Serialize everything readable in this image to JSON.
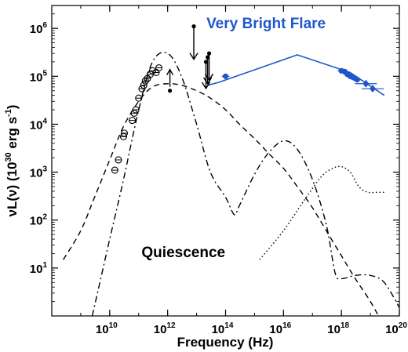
{
  "chart_data": {
    "type": "scatter",
    "title": "",
    "xlabel": "Frequency (Hz)",
    "ylabel_parts": {
      "main": "νL(ν) (10",
      "exp1": "30",
      "unit": " erg s",
      "exp2": "-1",
      "close": ")"
    },
    "x_scale": "log",
    "y_scale": "log",
    "xlim": [
      100000000.0,
      1e+20
    ],
    "ylim": [
      1,
      3000000.0
    ],
    "x_ticks": [
      {
        "value": 10000000000.0,
        "base": "10",
        "exp": "10"
      },
      {
        "value": 1000000000000.0,
        "base": "10",
        "exp": "12"
      },
      {
        "value": 100000000000000.0,
        "base": "10",
        "exp": "14"
      },
      {
        "value": 1e+16,
        "base": "10",
        "exp": "16"
      },
      {
        "value": 1e+18,
        "base": "10",
        "exp": "18"
      },
      {
        "value": 1e+20,
        "base": "10",
        "exp": "20"
      }
    ],
    "y_ticks": [
      {
        "value": 10,
        "base": "10",
        "exp": "1"
      },
      {
        "value": 100,
        "base": "10",
        "exp": "2"
      },
      {
        "value": 1000,
        "base": "10",
        "exp": "3"
      },
      {
        "value": 10000,
        "base": "10",
        "exp": "4"
      },
      {
        "value": 100000,
        "base": "10",
        "exp": "5"
      },
      {
        "value": 1000000,
        "base": "10",
        "exp": "6"
      }
    ],
    "annotations": [
      {
        "text": "Very Bright Flare",
        "x": 2500000000000000.0,
        "y": 1000000.0,
        "color": "#1f57c9"
      },
      {
        "text": "Quiescence",
        "x": 3500000000000.0,
        "y": 17,
        "color": "#000000"
      }
    ],
    "colors": {
      "flare": "#1f57c9",
      "quiescent": "#000000"
    },
    "series": [
      {
        "style": "dashed",
        "x": [
          250000000.0,
          1000000000.0,
          3000000000.0,
          10000000000.0,
          30000000000.0,
          100000000000.0,
          300000000000.0,
          1000000000000.0,
          3000000000000.0,
          10000000000000.0,
          30000000000000.0,
          100000000000000.0,
          300000000000000.0,
          1000000000000000.0,
          3000000000000000.0,
          1e+16,
          3e+16,
          1e+17,
          3e+17,
          1e+18,
          3e+18,
          1e+19,
          3e+19
        ],
        "y": [
          15,
          60,
          300,
          1800,
          9000,
          30000,
          60000,
          70000,
          65000,
          50000,
          35000,
          20000,
          10000,
          5000,
          2500,
          1200,
          500,
          180,
          60,
          18,
          6,
          2,
          0.6
        ]
      },
      {
        "style": "dashdot",
        "x": [
          2500000000.0,
          10000000000.0,
          30000000000.0,
          100000000000.0,
          300000000000.0,
          1000000000000.0,
          3000000000000.0,
          10000000000000.0,
          30000000000000.0,
          100000000000000.0,
          200000000000000.0,
          300000000000000.0,
          1000000000000000.0,
          3000000000000000.0,
          1e+16,
          3e+16,
          1e+17,
          3e+17,
          6e+17,
          1e+18,
          3e+18,
          1e+19,
          3e+19,
          1e+20
        ],
        "y": [
          1,
          40,
          700,
          20000,
          200000,
          300000,
          100000,
          10000,
          1000,
          300,
          130,
          200,
          900,
          2500,
          4500,
          3000,
          700,
          80,
          8,
          6,
          7,
          7,
          5,
          1.5
        ]
      },
      {
        "style": "dotted",
        "x": [
          1500000000000000.0,
          1e+16,
          5e+16,
          2e+17,
          5e+17,
          1e+18,
          2e+18,
          4e+18,
          8e+18,
          1.5e+19,
          3e+19
        ],
        "y": [
          15,
          60,
          250,
          800,
          1200,
          1300,
          1000,
          500,
          380,
          380,
          380
        ]
      },
      {
        "style": "solid",
        "color": "#1f57c9",
        "x": [
          25000000000000.0,
          60000000000000.0,
          3e+16,
          2e+18,
          3e+19
        ],
        "y": [
          65000,
          75000,
          280000,
          120000,
          40000
        ]
      }
    ],
    "points": [
      {
        "marker": "circle",
        "x": 15000000000.0,
        "y": 1100
      },
      {
        "marker": "circle",
        "x": 20000000000.0,
        "y": 1800
      },
      {
        "marker": "circle",
        "x": 30000000000.0,
        "y": 5500
      },
      {
        "marker": "circle",
        "x": 32000000000.0,
        "y": 6500
      },
      {
        "marker": "circle",
        "x": 60000000000.0,
        "y": 12000
      },
      {
        "marker": "circle",
        "x": 70000000000.0,
        "y": 17000
      },
      {
        "marker": "circle",
        "x": 80000000000.0,
        "y": 20000
      },
      {
        "marker": "circle",
        "x": 100000000000.0,
        "y": 35000
      },
      {
        "marker": "circle",
        "x": 130000000000.0,
        "y": 55000
      },
      {
        "marker": "circle",
        "x": 150000000000.0,
        "y": 65000
      },
      {
        "marker": "circle",
        "x": 170000000000.0,
        "y": 80000
      },
      {
        "marker": "circle",
        "x": 200000000000.0,
        "y": 90000
      },
      {
        "marker": "circle",
        "x": 250000000000.0,
        "y": 110000
      },
      {
        "marker": "circle",
        "x": 300000000000.0,
        "y": 130000
      },
      {
        "marker": "circle",
        "x": 400000000000.0,
        "y": 120000
      },
      {
        "marker": "circle",
        "x": 500000000000.0,
        "y": 150000
      },
      {
        "marker": "dot-limit-up",
        "x": 1200000000000.0,
        "y": 50000
      },
      {
        "marker": "dot-limit-down",
        "x": 8000000000000.0,
        "y": 1100000
      },
      {
        "marker": "dot-limit-down",
        "x": 21000000000000.0,
        "y": 200000
      },
      {
        "marker": "dot-limit-down",
        "x": 24000000000000.0,
        "y": 250000
      },
      {
        "marker": "dot-limit-down",
        "x": 27000000000000.0,
        "y": 300000
      },
      {
        "marker": "flare-dot",
        "x": 100000000000000.0,
        "y": 100000
      },
      {
        "marker": "flare-dot",
        "x": 1e+18,
        "y": 130000
      },
      {
        "marker": "flare-dot",
        "x": 1.3e+18,
        "y": 125000
      },
      {
        "marker": "flare-dot",
        "x": 1.6e+18,
        "y": 110000
      },
      {
        "marker": "flare-dot",
        "x": 2e+18,
        "y": 100000
      },
      {
        "marker": "flare-dot",
        "x": 2.5e+18,
        "y": 95000
      },
      {
        "marker": "flare-dot",
        "x": 3e+18,
        "y": 90000
      },
      {
        "marker": "flare-dot",
        "x": 3.5e+18,
        "y": 85000
      },
      {
        "marker": "flare-diamond",
        "x": 7e+18,
        "y": 70000
      },
      {
        "marker": "flare-diamond",
        "x": 1.2e+19,
        "y": 55000
      }
    ]
  }
}
